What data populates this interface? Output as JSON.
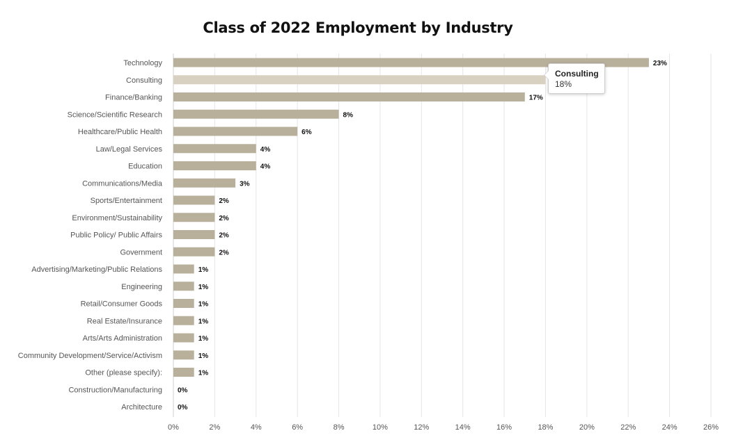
{
  "chart_data": {
    "type": "bar",
    "orientation": "horizontal",
    "title": "Class of 2022 Employment by Industry",
    "categories": [
      "Technology",
      "Consulting",
      "Finance/Banking",
      "Science/Scientific Research",
      "Healthcare/Public Health",
      "Law/Legal Services",
      "Education",
      "Communications/Media",
      "Sports/Entertainment",
      "Environment/Sustainability",
      "Public Policy/ Public Affairs",
      "Government",
      "Advertising/Marketing/Public Relations",
      "Engineering",
      "Retail/Consumer Goods",
      "Real Estate/Insurance",
      "Arts/Arts Administration",
      "Community Development/Service/Activism",
      "Other (please specify):",
      "Construction/Manufacturing",
      "Architecture"
    ],
    "values": [
      23,
      18,
      17,
      8,
      6,
      4,
      4,
      3,
      2,
      2,
      2,
      2,
      1,
      1,
      1,
      1,
      1,
      1,
      1,
      0,
      0
    ],
    "value_labels": [
      "23%",
      "18%",
      "17%",
      "8%",
      "6%",
      "4%",
      "4%",
      "3%",
      "2%",
      "2%",
      "2%",
      "2%",
      "1%",
      "1%",
      "1%",
      "1%",
      "1%",
      "1%",
      "1%",
      "0%",
      "0%"
    ],
    "x_ticks": [
      "0%",
      "2%",
      "4%",
      "6%",
      "8%",
      "10%",
      "12%",
      "14%",
      "16%",
      "18%",
      "20%",
      "22%",
      "24%",
      "26%"
    ],
    "xlim": [
      0,
      26
    ],
    "grid": true,
    "highlighted_index": 1,
    "colors": {
      "bar": "#b9b09c",
      "bar_highlight": "#d8d1c2",
      "grid": "#e6e6e6",
      "label": "#555555",
      "value_label": "#111111"
    }
  },
  "tooltip": {
    "title": "Consulting",
    "value": "18%"
  }
}
